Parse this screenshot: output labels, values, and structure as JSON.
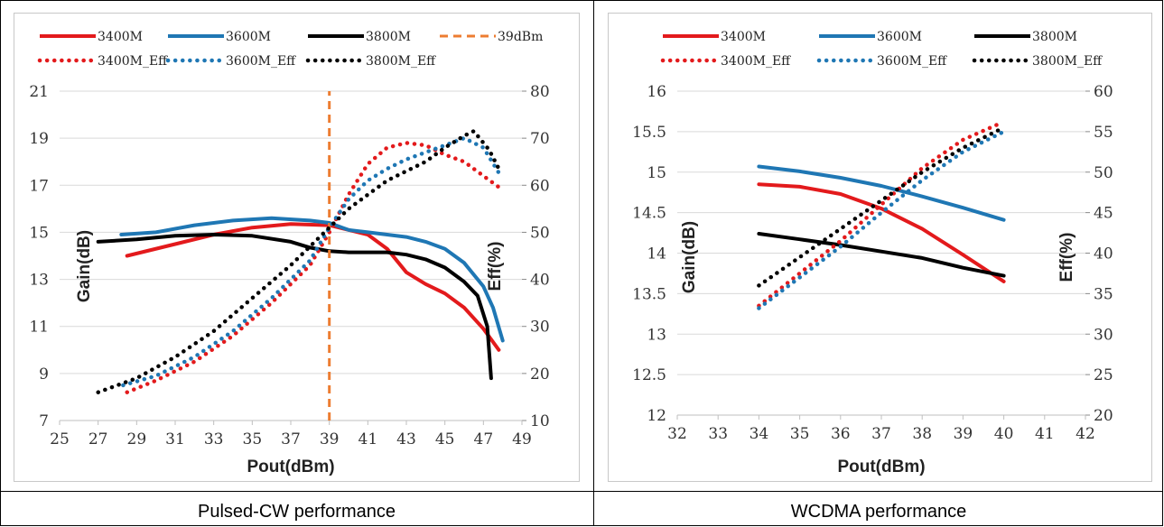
{
  "captions": {
    "left": "Pulsed-CW performance",
    "right": "WCDMA performance"
  },
  "colors": {
    "3400M": "#e31a1c",
    "3600M": "#1f77b4",
    "3800M": "#000000",
    "39dBm": "#ed7d31"
  },
  "chart_data": [
    {
      "type": "line",
      "grid": "horizontal",
      "legend_position": "top",
      "xlabel": "Pout(dBm)",
      "ylabel": "Gain(dB)",
      "y2label": "Eff(%)",
      "xlim": [
        25,
        49
      ],
      "ylim": [
        7,
        21
      ],
      "y2lim": [
        10,
        80
      ],
      "x_ticks": [
        "25",
        "27",
        "29",
        "31",
        "33",
        "35",
        "37",
        "39",
        "41",
        "43",
        "45",
        "47",
        "49"
      ],
      "y_ticks": [
        "7",
        "9",
        "11",
        "13",
        "15",
        "17",
        "19",
        "21"
      ],
      "y2_ticks": [
        "10",
        "20",
        "30",
        "40",
        "50",
        "60",
        "70",
        "80"
      ],
      "legend": [
        "3400M",
        "3600M",
        "3800M",
        "39dBm",
        "3400M_Eff",
        "3600M_Eff",
        "3800M_Eff"
      ],
      "series": [
        {
          "name": "3400M",
          "axis": "left",
          "style": "solid",
          "color": "#e31a1c",
          "points": [
            [
              28.5,
              14.0
            ],
            [
              31,
              14.5
            ],
            [
              33,
              14.9
            ],
            [
              35,
              15.2
            ],
            [
              37,
              15.35
            ],
            [
              39,
              15.3
            ],
            [
              40,
              15.1
            ],
            [
              41,
              14.9
            ],
            [
              42,
              14.3
            ],
            [
              43,
              13.3
            ],
            [
              44,
              12.8
            ],
            [
              45,
              12.4
            ],
            [
              46,
              11.8
            ],
            [
              47,
              10.9
            ],
            [
              47.8,
              10.0
            ]
          ]
        },
        {
          "name": "3600M",
          "axis": "left",
          "style": "solid",
          "color": "#1f77b4",
          "points": [
            [
              28.2,
              14.9
            ],
            [
              30,
              15.0
            ],
            [
              32,
              15.3
            ],
            [
              34,
              15.5
            ],
            [
              36,
              15.6
            ],
            [
              38,
              15.5
            ],
            [
              39,
              15.4
            ],
            [
              40,
              15.1
            ],
            [
              41,
              15.0
            ],
            [
              42,
              14.9
            ],
            [
              43,
              14.8
            ],
            [
              44,
              14.6
            ],
            [
              45,
              14.3
            ],
            [
              46,
              13.7
            ],
            [
              47,
              12.7
            ],
            [
              47.5,
              11.8
            ],
            [
              48,
              10.4
            ]
          ]
        },
        {
          "name": "3800M",
          "axis": "left",
          "style": "solid",
          "color": "#000000",
          "points": [
            [
              27,
              14.6
            ],
            [
              29,
              14.7
            ],
            [
              31,
              14.85
            ],
            [
              33,
              14.9
            ],
            [
              35,
              14.85
            ],
            [
              37,
              14.6
            ],
            [
              38,
              14.35
            ],
            [
              39,
              14.2
            ],
            [
              40,
              14.15
            ],
            [
              41,
              14.15
            ],
            [
              42,
              14.15
            ],
            [
              43,
              14.05
            ],
            [
              44,
              13.85
            ],
            [
              45,
              13.5
            ],
            [
              46,
              12.9
            ],
            [
              46.7,
              12.3
            ],
            [
              47.2,
              11.0
            ],
            [
              47.4,
              8.8
            ]
          ]
        },
        {
          "name": "39dBm",
          "axis": "left",
          "style": "dashed",
          "color": "#ed7d31",
          "points": [
            [
              39,
              7
            ],
            [
              39,
              21
            ]
          ]
        },
        {
          "name": "3400M_Eff",
          "axis": "right",
          "style": "dotted",
          "color": "#e31a1c",
          "points": [
            [
              28.5,
              16
            ],
            [
              30,
              18.5
            ],
            [
              32,
              22.5
            ],
            [
              34,
              28
            ],
            [
              36,
              35
            ],
            [
              38,
              43
            ],
            [
              39,
              50
            ],
            [
              40,
              58
            ],
            [
              41,
              64.5
            ],
            [
              42,
              68
            ],
            [
              43,
              69
            ],
            [
              44,
              68.5
            ],
            [
              45,
              66.5
            ],
            [
              46,
              65
            ],
            [
              47,
              62
            ],
            [
              48,
              59
            ]
          ]
        },
        {
          "name": "3600M_Eff",
          "axis": "right",
          "style": "dotted",
          "color": "#1f77b4",
          "points": [
            [
              28.3,
              17.5
            ],
            [
              30,
              19.5
            ],
            [
              32,
              23.5
            ],
            [
              34,
              29
            ],
            [
              36,
              36
            ],
            [
              38,
              44
            ],
            [
              39,
              51
            ],
            [
              40,
              57
            ],
            [
              41,
              61
            ],
            [
              42,
              63.5
            ],
            [
              43,
              65.5
            ],
            [
              44,
              67
            ],
            [
              45,
              68.5
            ],
            [
              46,
              70
            ],
            [
              47,
              68
            ],
            [
              47.9,
              62
            ]
          ]
        },
        {
          "name": "3800M_Eff",
          "axis": "right",
          "style": "dotted",
          "color": "#000000",
          "points": [
            [
              27,
              16
            ],
            [
              29,
              19
            ],
            [
              31,
              23.5
            ],
            [
              33,
              29
            ],
            [
              35,
              36
            ],
            [
              37,
              43
            ],
            [
              39,
              51
            ],
            [
              40,
              55
            ],
            [
              41,
              58
            ],
            [
              42,
              61
            ],
            [
              43,
              63
            ],
            [
              44,
              65
            ],
            [
              45,
              68
            ],
            [
              46,
              70.5
            ],
            [
              46.5,
              71.5
            ],
            [
              47.3,
              67.5
            ],
            [
              47.8,
              63.5
            ]
          ]
        }
      ]
    },
    {
      "type": "line",
      "grid": "horizontal",
      "legend_position": "top",
      "xlabel": "Pout(dBm)",
      "ylabel": "Gain(dB)",
      "y2label": "Eff(%)",
      "xlim": [
        32,
        42
      ],
      "ylim": [
        12,
        16
      ],
      "y2lim": [
        20,
        60
      ],
      "x_ticks": [
        "32",
        "33",
        "34",
        "35",
        "36",
        "37",
        "38",
        "39",
        "40",
        "41",
        "42"
      ],
      "y_ticks": [
        "12",
        "12.5",
        "13",
        "13.5",
        "14",
        "14.5",
        "15",
        "15.5",
        "16"
      ],
      "y2_ticks": [
        "20",
        "25",
        "30",
        "35",
        "40",
        "45",
        "50",
        "55",
        "60"
      ],
      "legend": [
        "3400M",
        "3600M",
        "3800M",
        "3400M_Eff",
        "3600M_Eff",
        "3800M_Eff"
      ],
      "series": [
        {
          "name": "3400M",
          "axis": "left",
          "style": "solid",
          "color": "#e31a1c",
          "points": [
            [
              34,
              14.85
            ],
            [
              35,
              14.82
            ],
            [
              36,
              14.73
            ],
            [
              37,
              14.55
            ],
            [
              38,
              14.3
            ],
            [
              39,
              13.98
            ],
            [
              40,
              13.65
            ]
          ]
        },
        {
          "name": "3600M",
          "axis": "left",
          "style": "solid",
          "color": "#1f77b4",
          "points": [
            [
              34,
              15.07
            ],
            [
              35,
              15.01
            ],
            [
              36,
              14.93
            ],
            [
              37,
              14.83
            ],
            [
              38,
              14.7
            ],
            [
              39,
              14.56
            ],
            [
              40,
              14.41
            ]
          ]
        },
        {
          "name": "3800M",
          "axis": "left",
          "style": "solid",
          "color": "#000000",
          "points": [
            [
              34,
              14.24
            ],
            [
              35,
              14.17
            ],
            [
              36,
              14.1
            ],
            [
              37,
              14.02
            ],
            [
              38,
              13.94
            ],
            [
              39,
              13.82
            ],
            [
              40,
              13.72
            ]
          ]
        },
        {
          "name": "3400M_Eff",
          "axis": "right",
          "style": "dotted",
          "color": "#e31a1c",
          "points": [
            [
              34,
              33.5
            ],
            [
              35,
              37.5
            ],
            [
              36,
              41.5
            ],
            [
              37,
              46
            ],
            [
              38,
              50.5
            ],
            [
              39,
              54
            ],
            [
              39.9,
              56
            ]
          ]
        },
        {
          "name": "3600M_Eff",
          "axis": "right",
          "style": "dotted",
          "color": "#1f77b4",
          "points": [
            [
              34,
              33.2
            ],
            [
              35,
              37
            ],
            [
              36,
              40.8
            ],
            [
              37,
              45
            ],
            [
              38,
              49
            ],
            [
              39,
              52.5
            ],
            [
              40,
              55
            ]
          ]
        },
        {
          "name": "3800M_Eff",
          "axis": "right",
          "style": "dotted",
          "color": "#000000",
          "points": [
            [
              34,
              36
            ],
            [
              35,
              39.5
            ],
            [
              36,
              43
            ],
            [
              37,
              46.5
            ],
            [
              38,
              50
            ],
            [
              39,
              53
            ],
            [
              40,
              55.5
            ]
          ]
        }
      ]
    }
  ]
}
